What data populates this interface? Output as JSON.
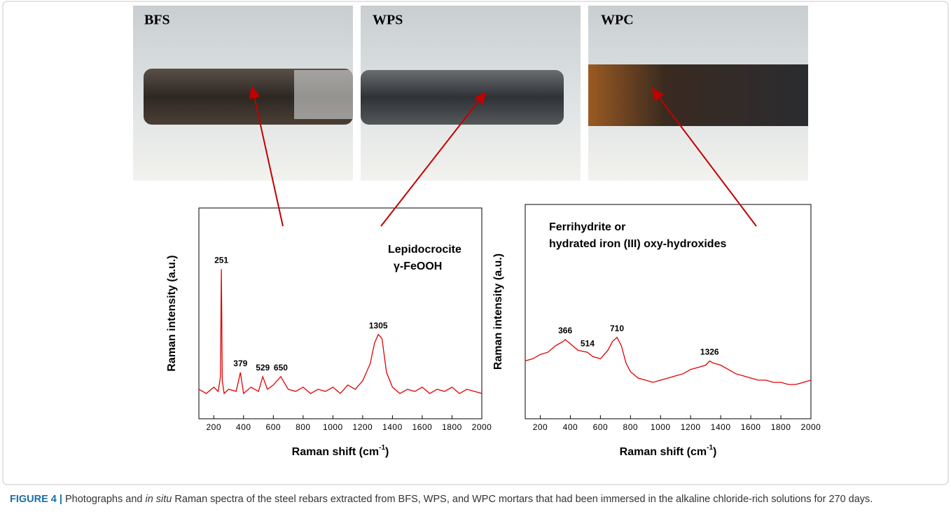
{
  "photos": [
    {
      "label": "BFS"
    },
    {
      "label": "WPS"
    },
    {
      "label": "WPC"
    }
  ],
  "chart_data": [
    {
      "type": "line",
      "y_label": "Raman intensity (a.u.)",
      "x_label": [
        "Raman shift (cm",
        "-1",
        ")"
      ],
      "annotations": [
        "Lepidocrocite",
        "γ-FeOOH"
      ],
      "color": "#e00000",
      "x": [
        100,
        150,
        200,
        230,
        245,
        251,
        257,
        270,
        300,
        350,
        379,
        400,
        450,
        500,
        529,
        560,
        600,
        650,
        700,
        750,
        800,
        850,
        900,
        950,
        1000,
        1050,
        1100,
        1150,
        1200,
        1250,
        1280,
        1305,
        1330,
        1360,
        1400,
        1450,
        1500,
        1550,
        1600,
        1650,
        1700,
        1750,
        1800,
        1850,
        1900,
        1950,
        2000
      ],
      "values": [
        14,
        12,
        15,
        13,
        20,
        71,
        18,
        12,
        14,
        13,
        22,
        12,
        15,
        13,
        20,
        14,
        16,
        20,
        14,
        13,
        15,
        12,
        14,
        13,
        15,
        12,
        16,
        14,
        18,
        26,
        36,
        40,
        38,
        22,
        15,
        12,
        14,
        13,
        15,
        12,
        14,
        13,
        15,
        12,
        14,
        13,
        12
      ],
      "peak_labels": [
        251,
        379,
        529,
        650,
        1305
      ],
      "xlim": [
        100,
        2000
      ],
      "ylim": [
        0,
        100
      ],
      "xticks": [
        200,
        400,
        600,
        800,
        1000,
        1200,
        1400,
        1600,
        1800,
        2000
      ]
    },
    {
      "type": "line",
      "y_label": "Raman intensity (a.u.)",
      "x_label": [
        "Raman shift (cm",
        "-1",
        ")"
      ],
      "annotations": [
        "Ferrihydrite or",
        "hydrated iron (III) oxy-hydroxides"
      ],
      "color": "#e00000",
      "x": [
        100,
        150,
        200,
        250,
        300,
        350,
        366,
        400,
        450,
        514,
        550,
        600,
        650,
        680,
        710,
        740,
        770,
        800,
        850,
        900,
        950,
        1000,
        1050,
        1100,
        1150,
        1200,
        1250,
        1300,
        1326,
        1350,
        1400,
        1450,
        1500,
        1550,
        1600,
        1650,
        1700,
        1750,
        1800,
        1850,
        1900,
        1950,
        2000
      ],
      "values": [
        27,
        28,
        30,
        31,
        34,
        36,
        37,
        35,
        32,
        31,
        29,
        28,
        32,
        36,
        38,
        34,
        26,
        22,
        19,
        18,
        17,
        18,
        19,
        20,
        21,
        23,
        24,
        25,
        27,
        26,
        25,
        23,
        21,
        20,
        19,
        18,
        18,
        17,
        17,
        16,
        16,
        17,
        18
      ],
      "peak_labels": [
        366,
        514,
        710,
        1326
      ],
      "xlim": [
        100,
        2000
      ],
      "ylim": [
        0,
        100
      ],
      "xticks": [
        200,
        400,
        600,
        800,
        1000,
        1200,
        1400,
        1600,
        1800,
        2000
      ]
    }
  ],
  "caption": {
    "label": "FIGURE 4 |",
    "parts": [
      " Photographs and ",
      "in situ",
      " Raman spectra of the steel rebars extracted from BFS, WPS, and WPC mortars that had been immersed in the alkaline chloride-rich solutions for 270 days."
    ]
  }
}
